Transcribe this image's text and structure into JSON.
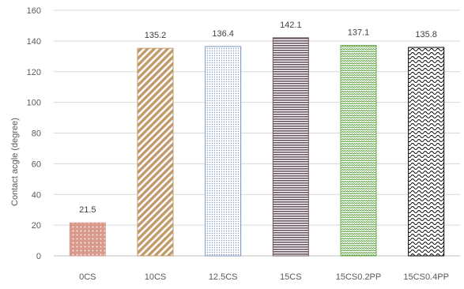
{
  "chart_data": {
    "type": "bar",
    "title": "",
    "xlabel": "",
    "ylabel": "Contact acgle (degree)",
    "categories": [
      "0CS",
      "10CS",
      "12.5CS",
      "15CS",
      "15CS0.2PP",
      "15CS0.4PP"
    ],
    "values": [
      21.5,
      135.2,
      136.4,
      142.1,
      137.1,
      135.8
    ],
    "data_labels": [
      "21.5",
      "135.2",
      "136.4",
      "142.1",
      "137.1",
      "135.8"
    ],
    "ylim": [
      0,
      160
    ],
    "yticks": [
      0,
      20,
      40,
      60,
      80,
      100,
      120,
      140,
      160
    ],
    "grid": true,
    "legend": "none",
    "bar_styles": [
      {
        "pattern": "small-dots",
        "color": "#d99a8c"
      },
      {
        "pattern": "wide-diagonal-stripes",
        "color": "#c19a6b"
      },
      {
        "pattern": "fine-dots",
        "color": "#7f96c2"
      },
      {
        "pattern": "horizontal-lines",
        "color": "#6b5460"
      },
      {
        "pattern": "zigzag-weave",
        "color": "#6aa84f"
      },
      {
        "pattern": "wave",
        "color": "#000000"
      }
    ],
    "colors": {
      "grid": "#d9d9d9",
      "axis": "#bfbfbf",
      "text": "#595959"
    }
  }
}
